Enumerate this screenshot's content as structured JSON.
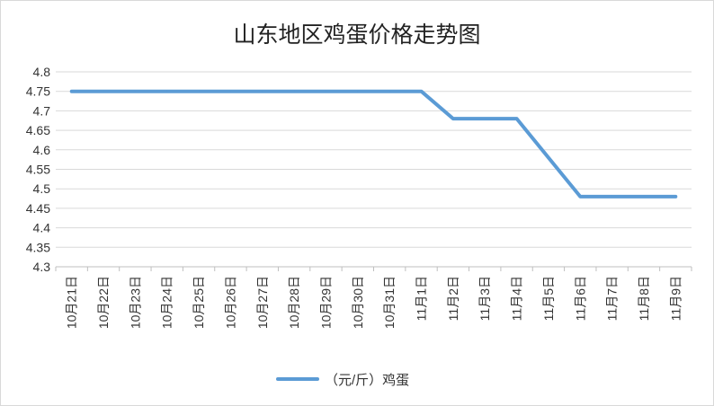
{
  "chart_data": {
    "type": "line",
    "title": "山东地区鸡蛋价格走势图",
    "categories": [
      "10月21日",
      "10月22日",
      "10月23日",
      "10月24日",
      "10月25日",
      "10月26日",
      "10月27日",
      "10月28日",
      "10月29日",
      "10月30日",
      "10月31日",
      "11月1日",
      "11月2日",
      "11月3日",
      "11月4日",
      "11月5日",
      "11月6日",
      "11月7日",
      "11月8日",
      "11月9日"
    ],
    "series": [
      {
        "name": "（元/斤）鸡蛋",
        "color": "#5b9bd5",
        "values": [
          4.75,
          4.75,
          4.75,
          4.75,
          4.75,
          4.75,
          4.75,
          4.75,
          4.75,
          4.75,
          4.75,
          4.75,
          4.68,
          4.68,
          4.68,
          4.58,
          4.48,
          4.48,
          4.48,
          4.48
        ]
      }
    ],
    "ylim": [
      4.3,
      4.8
    ],
    "yticks": [
      "4.8",
      "4.75",
      "4.7",
      "4.65",
      "4.6",
      "4.55",
      "4.5",
      "4.45",
      "4.4",
      "4.35",
      "4.3"
    ],
    "grid": true,
    "legend_position": "bottom",
    "xlabel": "",
    "ylabel": ""
  }
}
